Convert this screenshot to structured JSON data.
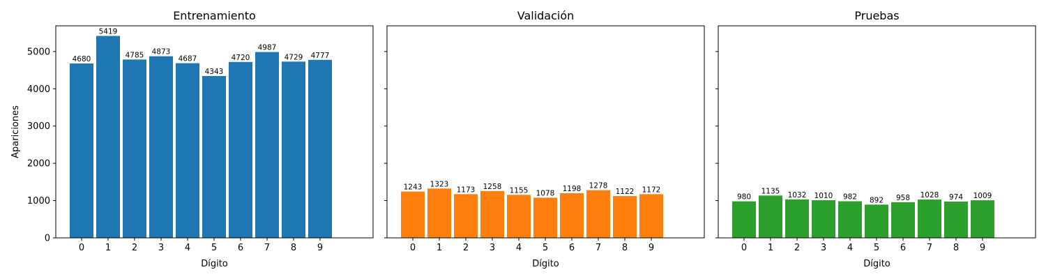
{
  "chart_data": [
    {
      "type": "bar",
      "title": "Entrenamiento",
      "xlabel": "Dígito",
      "ylabel": "Apariciones",
      "categories": [
        "0",
        "1",
        "2",
        "3",
        "4",
        "5",
        "6",
        "7",
        "8",
        "9"
      ],
      "values": [
        4680,
        5419,
        4785,
        4873,
        4687,
        4343,
        4720,
        4987,
        4729,
        4777
      ],
      "color": "#1f77b4",
      "ylim": [
        0,
        5689.95
      ],
      "yticks": [
        0,
        1000,
        2000,
        3000,
        4000,
        5000
      ],
      "show_ytick_labels": true,
      "grid": false
    },
    {
      "type": "bar",
      "title": "Validación",
      "xlabel": "Dígito",
      "ylabel": "",
      "categories": [
        "0",
        "1",
        "2",
        "3",
        "4",
        "5",
        "6",
        "7",
        "8",
        "9"
      ],
      "values": [
        1243,
        1323,
        1173,
        1258,
        1155,
        1078,
        1198,
        1278,
        1122,
        1172
      ],
      "color": "#ff7f0e",
      "ylim": [
        0,
        5689.95
      ],
      "yticks": [
        0,
        1000,
        2000,
        3000,
        4000,
        5000
      ],
      "show_ytick_labels": false,
      "grid": false
    },
    {
      "type": "bar",
      "title": "Pruebas",
      "xlabel": "Dígito",
      "ylabel": "",
      "categories": [
        "0",
        "1",
        "2",
        "3",
        "4",
        "5",
        "6",
        "7",
        "8",
        "9"
      ],
      "values": [
        980,
        1135,
        1032,
        1010,
        982,
        892,
        958,
        1028,
        974,
        1009
      ],
      "color": "#2ca02c",
      "ylim": [
        0,
        5689.95
      ],
      "yticks": [
        0,
        1000,
        2000,
        3000,
        4000,
        5000
      ],
      "show_ytick_labels": false,
      "grid": false
    }
  ]
}
